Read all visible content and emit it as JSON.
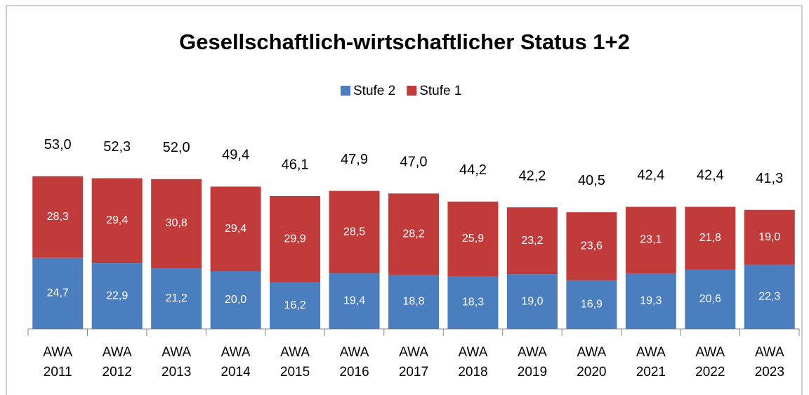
{
  "chart_data": {
    "type": "stacked_bar",
    "title": "Gesellschaftlich-wirtschaftlicher Status 1+2",
    "categories": [
      "AWA 2011",
      "AWA 2012",
      "AWA 2013",
      "AWA 2014",
      "AWA 2015",
      "AWA 2016",
      "AWA 2017",
      "AWA 2018",
      "AWA 2019",
      "AWA 2020",
      "AWA 2021",
      "AWA 2022",
      "AWA 2023"
    ],
    "series": [
      {
        "name": "Stufe 2",
        "color": "#4a7ebf",
        "values": [
          24.7,
          22.9,
          21.2,
          20.0,
          16.2,
          19.4,
          18.8,
          18.3,
          19.0,
          16.9,
          19.3,
          20.6,
          22.3
        ],
        "value_labels": [
          "24,7",
          "22,9",
          "21,2",
          "20,0",
          "16,2",
          "19,4",
          "18,8",
          "18,3",
          "19,0",
          "16,9",
          "19,3",
          "20,6",
          "22,3"
        ]
      },
      {
        "name": "Stufe 1",
        "color": "#c23b3b",
        "values": [
          28.3,
          29.4,
          30.8,
          29.4,
          29.9,
          28.5,
          28.2,
          25.9,
          23.2,
          23.6,
          23.1,
          21.8,
          19.0
        ],
        "value_labels": [
          "28,3",
          "29,4",
          "30,8",
          "29,4",
          "29,9",
          "28,5",
          "28,2",
          "25,9",
          "23,2",
          "23,6",
          "23,1",
          "21,8",
          "19,0"
        ]
      }
    ],
    "totals": [
      53.0,
      52.3,
      52.0,
      49.4,
      46.1,
      47.9,
      47.0,
      44.2,
      42.2,
      40.5,
      42.4,
      42.4,
      41.3
    ],
    "total_labels": [
      "53,0",
      "52,3",
      "52,0",
      "49,4",
      "46,1",
      "47,9",
      "47,0",
      "44,2",
      "42,2",
      "40,5",
      "42,4",
      "42,4",
      "41,3"
    ],
    "legend": "top"
  }
}
